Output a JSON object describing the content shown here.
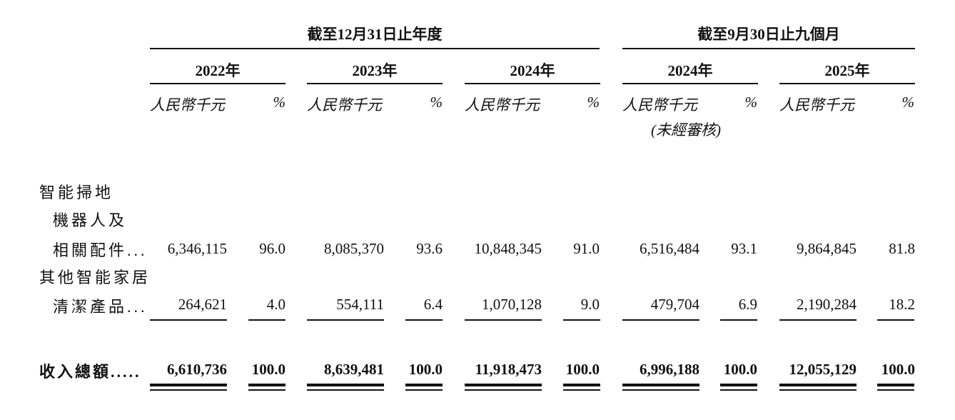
{
  "header": {
    "group_fy": "截至12月31日止年度",
    "group_9m": "截至9月30日止九個月",
    "years": [
      "2022年",
      "2023年",
      "2024年",
      "2024年",
      "2025年"
    ],
    "unit_rmb": "人民幣千元",
    "unit_pct": "%",
    "unaudited": "(未經審核)"
  },
  "rows": [
    {
      "label_lines": [
        "智能掃地",
        "機器人及",
        "相關配件..."
      ],
      "values": [
        "6,346,115",
        "96.0",
        "8,085,370",
        "93.6",
        "10,848,345",
        "91.0",
        "6,516,484",
        "93.1",
        "9,864,845",
        "81.8"
      ]
    },
    {
      "label_lines": [
        "其他智能家居",
        "清潔產品..."
      ],
      "values": [
        "264,621",
        "4.0",
        "554,111",
        "6.4",
        "1,070,128",
        "9.0",
        "479,704",
        "6.9",
        "2,190,284",
        "18.2"
      ]
    }
  ],
  "total": {
    "label": "收入總額.....",
    "values": [
      "6,610,736",
      "100.0",
      "8,639,481",
      "100.0",
      "11,918,473",
      "100.0",
      "6,996,188",
      "100.0",
      "12,055,129",
      "100.0"
    ]
  }
}
